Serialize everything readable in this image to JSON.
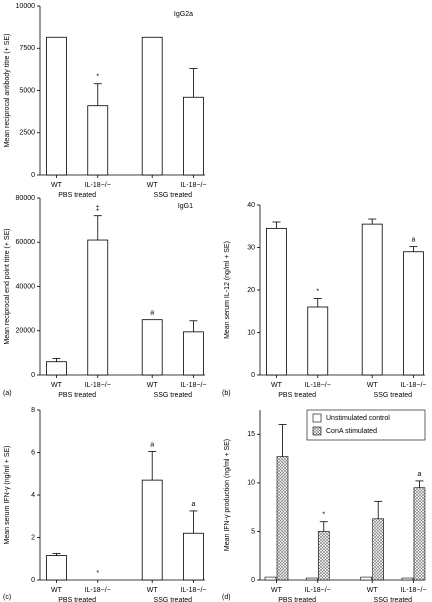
{
  "chart_data": [
    {
      "type": "bar",
      "title": "IgG2a",
      "ylabel": "Mean reciprocal antibody titre (+ SE)",
      "categories": [
        "WT",
        "IL-18−/−",
        "WT",
        "IL-18−/−"
      ],
      "groups": [
        "PBS treated",
        "SSG treated"
      ],
      "values": [
        8150,
        4100,
        8150,
        4600
      ],
      "errors": [
        null,
        1300,
        null,
        1700
      ],
      "annotations": [
        null,
        "*",
        null,
        null
      ],
      "color": "#ffffff",
      "ylim": [
        0,
        10000
      ],
      "yticks": [
        0,
        2500,
        5000,
        7500,
        10000
      ]
    },
    {
      "type": "bar",
      "title": "IgG1",
      "panel_label": "(a)",
      "ylabel": "Mean reciprocal end point titre (+ SE)",
      "categories": [
        "WT",
        "IL-18−/−",
        "WT",
        "IL-18−/−"
      ],
      "groups": [
        "PBS treated",
        "SSG treated"
      ],
      "values": [
        6000,
        61000,
        25000,
        19500
      ],
      "errors": [
        1500,
        11000,
        null,
        5000
      ],
      "annotations": [
        null,
        "‡",
        "a",
        null
      ],
      "color": "#ffffff",
      "ylim": [
        0,
        80000
      ],
      "yticks": [
        0,
        20000,
        40000,
        60000,
        80000
      ]
    },
    {
      "type": "bar",
      "panel_label": "(b)",
      "ylabel": "Mean serum IL-12 (ng/ml + SE)",
      "categories": [
        "WT",
        "IL-18−/−",
        "WT",
        "IL-18−/−"
      ],
      "groups": [
        "PBS treated",
        "SSG treated"
      ],
      "values": [
        34.5,
        16,
        35.5,
        29
      ],
      "errors": [
        1.5,
        2,
        1.2,
        1.2
      ],
      "annotations": [
        null,
        "*",
        null,
        "a"
      ],
      "color": "#ffffff",
      "ylim": [
        0,
        40
      ],
      "yticks": [
        0,
        10,
        20,
        30,
        40
      ]
    },
    {
      "type": "bar",
      "panel_label": "(c)",
      "ylabel": "Mean serum IFN-γ (ng/ml + SE)",
      "categories": [
        "WT",
        "IL-18−/−",
        "WT",
        "IL-18−/−"
      ],
      "groups": [
        "PBS treated",
        "SSG treated"
      ],
      "values": [
        1.15,
        0,
        4.7,
        2.2
      ],
      "errors": [
        0.1,
        null,
        1.35,
        1.05
      ],
      "annotations": [
        null,
        "*",
        "a",
        "a"
      ],
      "color": "#ffffff",
      "ylim": [
        0,
        8
      ],
      "yticks": [
        0,
        2,
        4,
        6,
        8
      ]
    },
    {
      "type": "grouped_bar",
      "panel_label": "(d)",
      "ylabel": "Mean IFN-γ production (ng/ml + SE)",
      "categories": [
        "WT",
        "IL-18−/−",
        "WT",
        "IL-18−/−"
      ],
      "groups": [
        "PBS treated",
        "SSG treated"
      ],
      "series": [
        {
          "name": "Unstimulated control",
          "color": "#ffffff",
          "values": [
            0.3,
            0.2,
            0.3,
            0.2
          ]
        },
        {
          "name": "ConA stimulated",
          "color": "#bbbbbb",
          "pattern": "crosshatch",
          "values": [
            12.7,
            5,
            6.3,
            9.5
          ],
          "errors": [
            3.3,
            1,
            1.8,
            0.7
          ],
          "annotations": [
            null,
            "*",
            null,
            "a"
          ]
        }
      ],
      "legend": "upper right",
      "ylim": [
        0,
        17.5
      ],
      "yticks": [
        0,
        5,
        10,
        15
      ]
    }
  ]
}
